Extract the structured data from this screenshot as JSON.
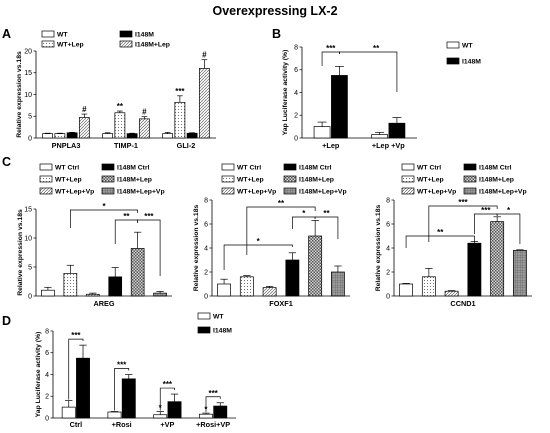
{
  "figure": {
    "title": "Overexpressing LX-2"
  },
  "chart_data": [
    {
      "panel": "A",
      "type": "bar",
      "categories": [
        "PNPLA3",
        "TIMP-1",
        "GLI-2"
      ],
      "series": [
        {
          "name": "WT",
          "values": [
            1.0,
            1.0,
            1.0
          ],
          "errors": [
            0.1,
            0.2,
            0.3
          ]
        },
        {
          "name": "WT+Lep",
          "values": [
            1.0,
            5.8,
            8.2
          ],
          "errors": [
            0.1,
            0.4,
            1.5
          ]
        },
        {
          "name": "I148M",
          "values": [
            1.2,
            1.0,
            1.1
          ],
          "errors": [
            0.1,
            0.1,
            0.1
          ]
        },
        {
          "name": "I148M+Lep",
          "values": [
            4.7,
            4.4,
            16.0
          ],
          "errors": [
            0.8,
            0.5,
            2.0
          ]
        }
      ],
      "ylabel": "Relative expression vs.18s",
      "ylim": [
        0,
        20
      ],
      "yticks": [
        "0",
        "5",
        "10",
        "15",
        "20"
      ],
      "sig_marks": [
        "#",
        "**",
        "#",
        "***",
        "#"
      ]
    },
    {
      "panel": "B",
      "type": "bar",
      "categories": [
        "+Lep",
        "+Lep +Vp"
      ],
      "series": [
        {
          "name": "WT",
          "values": [
            1.0,
            0.3
          ],
          "errors": [
            0.4,
            0.2
          ]
        },
        {
          "name": "I148M",
          "values": [
            5.5,
            1.3
          ],
          "errors": [
            0.8,
            0.5
          ]
        }
      ],
      "ylabel": "Yap Luciferase activity (%)",
      "ylim": [
        0,
        8
      ],
      "yticks": [
        "0",
        "2",
        "4",
        "6",
        "8"
      ],
      "sig_marks": [
        "***",
        "**"
      ]
    },
    {
      "panel": "C",
      "type": "bar",
      "categories": [
        "AREG"
      ],
      "series": [
        {
          "name": "WT Ctrl",
          "values": [
            1.0
          ],
          "errors": [
            0.5
          ]
        },
        {
          "name": "WT+Lep",
          "values": [
            3.9
          ],
          "errors": [
            1.4
          ]
        },
        {
          "name": "WT+Lep+Vp",
          "values": [
            0.3
          ],
          "errors": [
            0.2
          ]
        },
        {
          "name": "I148M Ctrl",
          "values": [
            3.3
          ],
          "errors": [
            1.6
          ]
        },
        {
          "name": "I148M+Lep",
          "values": [
            8.2
          ],
          "errors": [
            2.8
          ]
        },
        {
          "name": "I148M+Lep+Vp",
          "values": [
            0.5
          ],
          "errors": [
            0.3
          ]
        }
      ],
      "ylabel": "Relative expression vs.18s",
      "ylim": [
        0,
        15
      ],
      "yticks": [
        "0",
        "5",
        "10",
        "15"
      ],
      "sig_marks": [
        "*",
        "**",
        "***"
      ]
    },
    {
      "panel": "C",
      "type": "bar",
      "categories": [
        "FOXF1"
      ],
      "series": [
        {
          "name": "WT Ctrl",
          "values": [
            1.0
          ],
          "errors": [
            0.4
          ]
        },
        {
          "name": "WT+Lep",
          "values": [
            1.6
          ],
          "errors": [
            0.1
          ]
        },
        {
          "name": "WT+Lep+Vp",
          "values": [
            0.7
          ],
          "errors": [
            0.1
          ]
        },
        {
          "name": "I148M Ctrl",
          "values": [
            3.0
          ],
          "errors": [
            0.6
          ]
        },
        {
          "name": "I148M+Lep",
          "values": [
            5.0
          ],
          "errors": [
            1.3
          ]
        },
        {
          "name": "I148M+Lep+Vp",
          "values": [
            2.0
          ],
          "errors": [
            0.5
          ]
        }
      ],
      "ylabel": "Relative expression vs.18s",
      "ylim": [
        0,
        8
      ],
      "yticks": [
        "0",
        "2",
        "4",
        "6",
        "8"
      ],
      "sig_marks": [
        "*",
        "**",
        "*",
        "**"
      ]
    },
    {
      "panel": "C",
      "type": "bar",
      "categories": [
        "CCND1"
      ],
      "series": [
        {
          "name": "WT Ctrl",
          "values": [
            1.0
          ],
          "errors": [
            0.05
          ]
        },
        {
          "name": "WT+Lep",
          "values": [
            1.6
          ],
          "errors": [
            0.7
          ]
        },
        {
          "name": "WT+Lep+Vp",
          "values": [
            0.4
          ],
          "errors": [
            0.05
          ]
        },
        {
          "name": "I148M Ctrl",
          "values": [
            4.4
          ],
          "errors": [
            0.15
          ]
        },
        {
          "name": "I148M+Lep",
          "values": [
            6.2
          ],
          "errors": [
            0.4
          ]
        },
        {
          "name": "I148M+Lep+Vp",
          "values": [
            3.8
          ],
          "errors": [
            0.05
          ]
        }
      ],
      "ylabel": "Relative expression vs.18s",
      "ylim": [
        0,
        8
      ],
      "yticks": [
        "0",
        "2",
        "4",
        "6",
        "8"
      ],
      "sig_marks": [
        "**",
        "***",
        "***",
        "*"
      ]
    },
    {
      "panel": "D",
      "type": "bar",
      "categories": [
        "Ctrl",
        "+Rosi",
        "+VP",
        "+Rosi+VP"
      ],
      "series": [
        {
          "name": "WT",
          "values": [
            1.0,
            0.55,
            0.3,
            0.35
          ],
          "errors": [
            0.6,
            0.05,
            0.3,
            0.1
          ]
        },
        {
          "name": "I148M",
          "values": [
            5.5,
            3.6,
            1.5,
            1.1
          ],
          "errors": [
            1.2,
            0.4,
            0.7,
            0.3
          ]
        }
      ],
      "ylabel": "Yap Luciferase activity (%)",
      "ylim": [
        0,
        8
      ],
      "yticks": [
        "0",
        "2",
        "4",
        "6",
        "8"
      ],
      "sig_marks": [
        "***",
        "***",
        "***",
        "***",
        "*",
        "*"
      ]
    }
  ]
}
